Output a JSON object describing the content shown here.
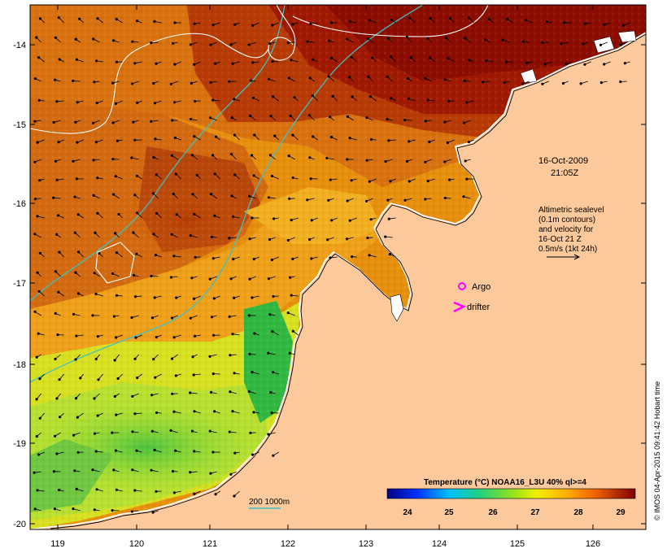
{
  "map": {
    "lon_ticks": [
      "119",
      "120",
      "121",
      "122",
      "123",
      "124",
      "125",
      "126"
    ],
    "lat_ticks": [
      "-14",
      "-15",
      "-16",
      "-17",
      "-18",
      "-19",
      "-20"
    ]
  },
  "annotations": {
    "date": "16-Oct-2009",
    "time": "21:05Z",
    "altimetry_lines": [
      "Altimetric sealevel",
      "(0.1m contours)",
      "and velocity for",
      "16-Oct 21 Z",
      "0.5m/s (1kt 24h)"
    ],
    "argo_label": "Argo",
    "drifter_label": "drifter",
    "depth_contours_label": "200  1000m"
  },
  "colorbar": {
    "title": "Temperature (°C) NOAA16_L3U 40% ql>=4",
    "ticks": [
      "24",
      "25",
      "26",
      "27",
      "28",
      "29"
    ]
  },
  "credit": "© IMOS 04-Apr-2015 09:41:42 Hobart time",
  "colors": {
    "land": "#fbc99c",
    "argo": "#ff00ff",
    "drifter": "#ff00ff",
    "isobath": "#40c0c0",
    "sealevel_contour": "#ffffff"
  }
}
